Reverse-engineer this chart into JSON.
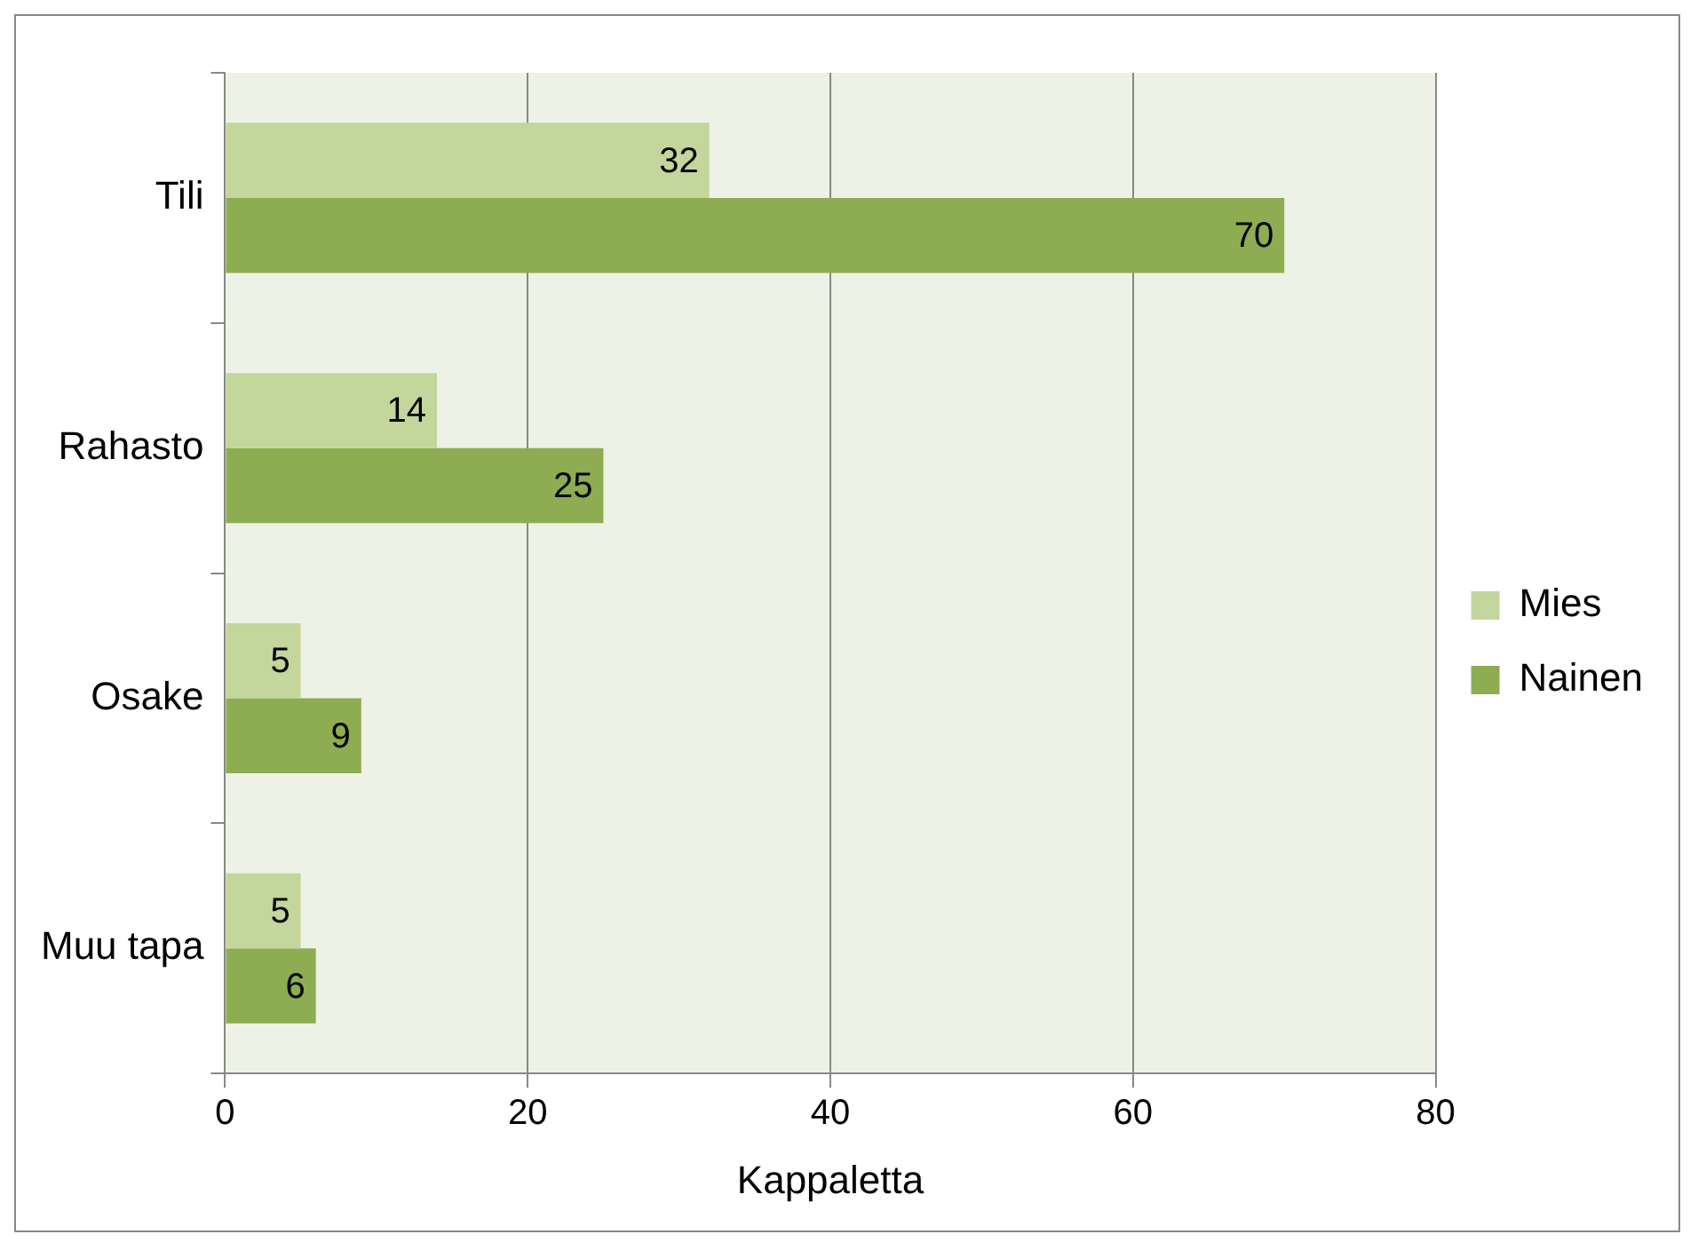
{
  "chart_data": {
    "type": "bar",
    "orientation": "horizontal",
    "xlabel": "Kappaletta",
    "categories": [
      "Tili",
      "Rahasto",
      "Osake",
      "Muu tapa"
    ],
    "series": [
      {
        "name": "Mies",
        "color": "#c3d69b",
        "values": [
          32,
          14,
          5,
          5
        ]
      },
      {
        "name": "Nainen",
        "color": "#8eac52",
        "values": [
          70,
          25,
          9,
          6
        ]
      }
    ],
    "xlim": [
      0,
      80
    ],
    "xticks": [
      0,
      20,
      40,
      60,
      80
    ],
    "grid": "x",
    "legend": "right",
    "data_labels": true
  }
}
